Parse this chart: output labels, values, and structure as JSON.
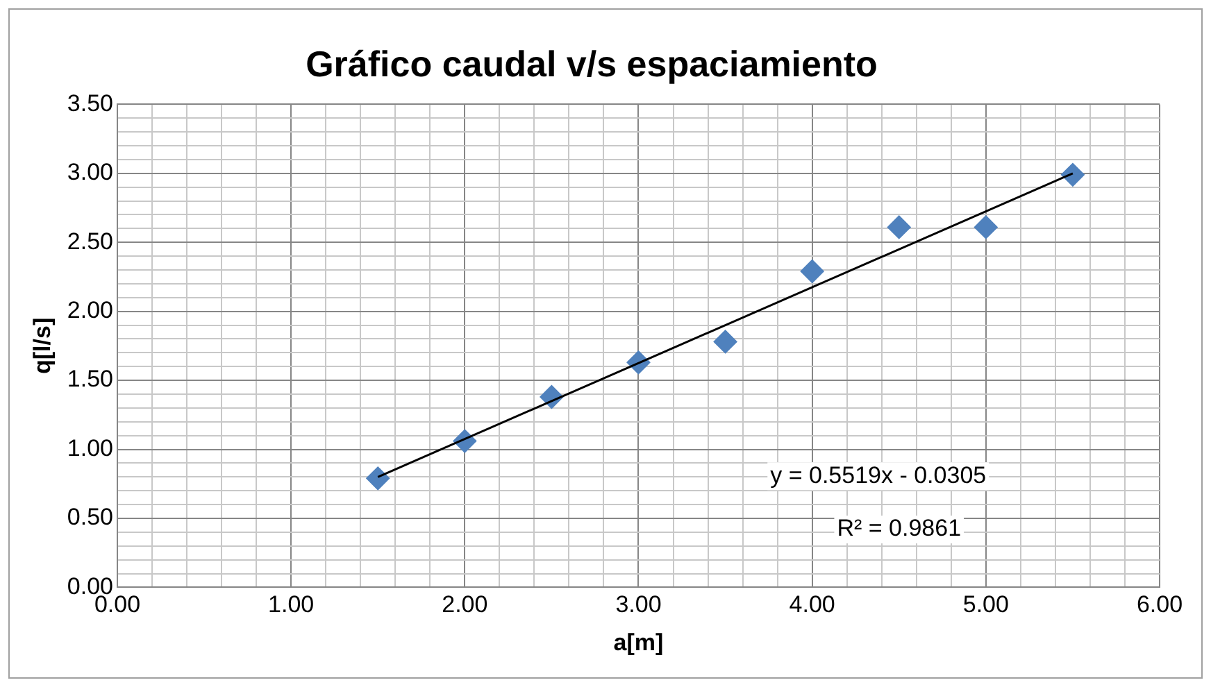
{
  "chart_data": {
    "type": "scatter",
    "title": "Gráfico caudal v/s espaciamiento",
    "xlabel": "a[m]",
    "ylabel": "q[l/s]",
    "x": [
      1.5,
      2,
      2.5,
      3,
      3.5,
      4,
      4.5,
      5,
      5.5
    ],
    "series": [
      {
        "type": "scatter",
        "color": "#4f81bd",
        "marker": "diamond",
        "values": [
          0.79,
          1.06,
          1.38,
          1.63,
          1.78,
          2.29,
          2.61,
          2.61,
          2.99
        ]
      },
      {
        "type": "line",
        "color": "#000000",
        "marker": "none",
        "x": [
          1.5,
          5.5
        ],
        "values": [
          0.8,
          3.0
        ]
      }
    ],
    "xlim": [
      0,
      6
    ],
    "ylim": [
      0,
      3.5
    ],
    "xticks": [
      {
        "value": 0,
        "label": "0.00"
      },
      {
        "value": 0.2,
        "label": null
      },
      {
        "value": 0.4,
        "label": null
      },
      {
        "value": 0.6,
        "label": null
      },
      {
        "value": 0.8,
        "label": null
      },
      {
        "value": 1,
        "label": "1.00"
      },
      {
        "value": 1.2,
        "label": null
      },
      {
        "value": 1.4,
        "label": null
      },
      {
        "value": 1.6,
        "label": null
      },
      {
        "value": 1.8,
        "label": null
      },
      {
        "value": 2,
        "label": "2.00"
      },
      {
        "value": 2.2,
        "label": null
      },
      {
        "value": 2.4,
        "label": null
      },
      {
        "value": 2.6,
        "label": null
      },
      {
        "value": 2.8,
        "label": null
      },
      {
        "value": 3,
        "label": "3.00"
      },
      {
        "value": 3.2,
        "label": null
      },
      {
        "value": 3.4,
        "label": null
      },
      {
        "value": 3.6,
        "label": null
      },
      {
        "value": 3.8,
        "label": null
      },
      {
        "value": 4,
        "label": "4.00"
      },
      {
        "value": 4.2,
        "label": null
      },
      {
        "value": 4.4,
        "label": null
      },
      {
        "value": 4.6,
        "label": null
      },
      {
        "value": 4.8,
        "label": null
      },
      {
        "value": 5,
        "label": "5.00"
      },
      {
        "value": 5.2,
        "label": null
      },
      {
        "value": 5.4,
        "label": null
      },
      {
        "value": 5.6,
        "label": null
      },
      {
        "value": 5.8,
        "label": null
      },
      {
        "value": 6,
        "label": "6.00"
      }
    ],
    "yticks": [
      {
        "value": 0,
        "label": "0.00"
      },
      {
        "value": 0.1,
        "label": null
      },
      {
        "value": 0.2,
        "label": null
      },
      {
        "value": 0.3,
        "label": null
      },
      {
        "value": 0.4,
        "label": null
      },
      {
        "value": 0.5,
        "label": "0.50"
      },
      {
        "value": 0.6,
        "label": null
      },
      {
        "value": 0.7,
        "label": null
      },
      {
        "value": 0.8,
        "label": null
      },
      {
        "value": 0.9,
        "label": null
      },
      {
        "value": 1,
        "label": "1.00"
      },
      {
        "value": 1.1,
        "label": null
      },
      {
        "value": 1.2,
        "label": null
      },
      {
        "value": 1.3,
        "label": null
      },
      {
        "value": 1.4,
        "label": null
      },
      {
        "value": 1.5,
        "label": "1.50"
      },
      {
        "value": 1.6,
        "label": null
      },
      {
        "value": 1.7,
        "label": null
      },
      {
        "value": 1.8,
        "label": null
      },
      {
        "value": 1.9,
        "label": null
      },
      {
        "value": 2,
        "label": "2.00"
      },
      {
        "value": 2.1,
        "label": null
      },
      {
        "value": 2.2,
        "label": null
      },
      {
        "value": 2.3,
        "label": null
      },
      {
        "value": 2.4,
        "label": null
      },
      {
        "value": 2.5,
        "label": "2.50"
      },
      {
        "value": 2.6,
        "label": null
      },
      {
        "value": 2.7,
        "label": null
      },
      {
        "value": 2.8,
        "label": null
      },
      {
        "value": 2.9,
        "label": null
      },
      {
        "value": 3,
        "label": "3.00"
      },
      {
        "value": 3.1,
        "label": null
      },
      {
        "value": 3.2,
        "label": null
      },
      {
        "value": 3.3,
        "label": null
      },
      {
        "value": 3.4,
        "label": null
      },
      {
        "value": 3.5,
        "label": "3.50"
      }
    ],
    "grid": true,
    "legend": false,
    "annotations": [
      "y = 0.5519x - 0.0305",
      "R² = 0.9861"
    ]
  }
}
